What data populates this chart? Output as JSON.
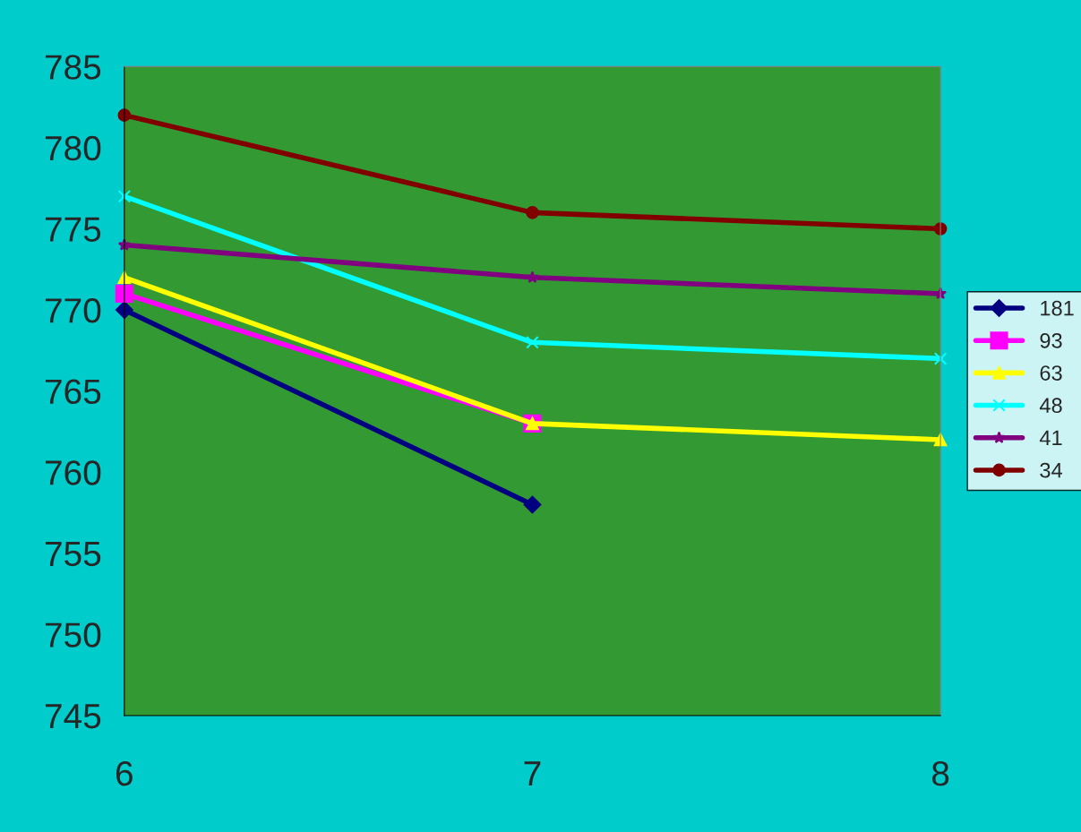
{
  "chart_data": {
    "type": "line",
    "categories": [
      "6",
      "7",
      "8"
    ],
    "ylim": [
      745,
      785
    ],
    "yticks": [
      745,
      750,
      755,
      760,
      765,
      770,
      775,
      780,
      785
    ],
    "grid": false,
    "legend": "right",
    "series": [
      {
        "name": "181",
        "color": "#000080",
        "marker": "diamond",
        "values": [
          770,
          758,
          null
        ]
      },
      {
        "name": "93",
        "color": "#ff00ff",
        "marker": "square",
        "values": [
          771,
          763,
          null
        ]
      },
      {
        "name": "63",
        "color": "#ffff00",
        "marker": "triangle",
        "values": [
          772,
          763,
          762
        ]
      },
      {
        "name": "48",
        "color": "#00ffff",
        "marker": "cross",
        "values": [
          777,
          768,
          767
        ]
      },
      {
        "name": "41",
        "color": "#800080",
        "marker": "star",
        "values": [
          774,
          772,
          771
        ]
      },
      {
        "name": "34",
        "color": "#800000",
        "marker": "circle",
        "values": [
          782,
          776,
          775
        ]
      }
    ]
  }
}
